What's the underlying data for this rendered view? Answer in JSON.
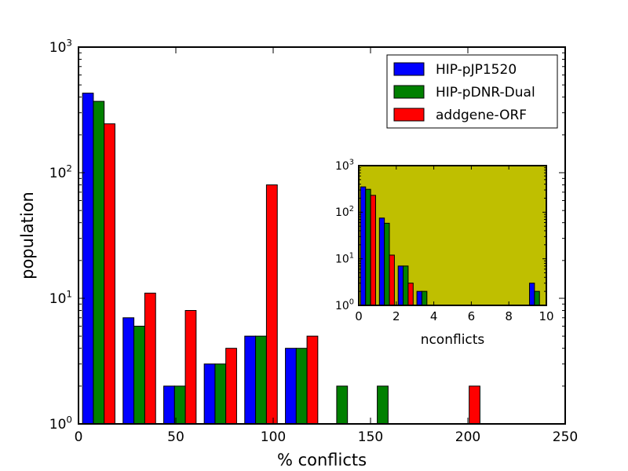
{
  "chart_data": [
    {
      "type": "bar",
      "xlabel": "% conflicts",
      "ylabel": "population",
      "xlim": [
        0,
        250
      ],
      "ylim": [
        1,
        1000
      ],
      "yscale": "log",
      "grid": false,
      "legend_position": "top-right",
      "x_ticks": [
        {
          "value": 0,
          "label": "0"
        },
        {
          "value": 50,
          "label": "50"
        },
        {
          "value": 100,
          "label": "100"
        },
        {
          "value": 150,
          "label": "150"
        },
        {
          "value": 200,
          "label": "200"
        },
        {
          "value": 250,
          "label": "250"
        }
      ],
      "y_ticks": [
        {
          "value": 1,
          "base": "10",
          "exp": "0"
        },
        {
          "value": 10,
          "base": "10",
          "exp": "1"
        },
        {
          "value": 100,
          "base": "10",
          "exp": "2"
        },
        {
          "value": 1000,
          "base": "10",
          "exp": "3"
        }
      ],
      "bin_edges": [
        0,
        20.8,
        41.7,
        62.5,
        83.3,
        104.2,
        125,
        145.8,
        166.7,
        187.5,
        208.3
      ],
      "series": [
        {
          "name": "HIP-pJP1520",
          "color": "#0000ff",
          "values": [
            430,
            7,
            2,
            3,
            5,
            4,
            0,
            0,
            0,
            0
          ]
        },
        {
          "name": "HIP-pDNR-Dual",
          "color": "#008000",
          "values": [
            370,
            6,
            2,
            3,
            5,
            4,
            2,
            2,
            0,
            0
          ]
        },
        {
          "name": "addgene-ORF",
          "color": "#ff0000",
          "values": [
            245,
            11,
            8,
            4,
            80,
            5,
            0,
            0,
            0,
            2
          ]
        }
      ]
    },
    {
      "type": "bar",
      "xlabel": "nconflicts",
      "ylabel": "",
      "xlim": [
        0,
        10
      ],
      "ylim": [
        1,
        1000
      ],
      "yscale": "log",
      "background_color": "#bfbf00",
      "grid": false,
      "x_ticks": [
        {
          "value": 0,
          "label": "0"
        },
        {
          "value": 2,
          "label": "2"
        },
        {
          "value": 4,
          "label": "4"
        },
        {
          "value": 6,
          "label": "6"
        },
        {
          "value": 8,
          "label": "8"
        },
        {
          "value": 10,
          "label": "10"
        }
      ],
      "y_ticks": [
        {
          "value": 1,
          "base": "10",
          "exp": "0"
        },
        {
          "value": 10,
          "base": "10",
          "exp": "1"
        },
        {
          "value": 100,
          "base": "10",
          "exp": "2"
        },
        {
          "value": 1000,
          "base": "10",
          "exp": "3"
        }
      ],
      "bin_edges": [
        0,
        1,
        2,
        3,
        4,
        5,
        6,
        7,
        8,
        9,
        10
      ],
      "series": [
        {
          "name": "HIP-pJP1520",
          "color": "#0000ff",
          "values": [
            350,
            75,
            7,
            2,
            0,
            0,
            0,
            0,
            0,
            3
          ]
        },
        {
          "name": "HIP-pDNR-Dual",
          "color": "#008000",
          "values": [
            310,
            58,
            7,
            2,
            0,
            0,
            0,
            0,
            0,
            2
          ]
        },
        {
          "name": "addgene-ORF",
          "color": "#ff0000",
          "values": [
            230,
            12,
            3,
            0,
            0,
            0,
            0,
            0,
            0,
            0
          ]
        }
      ]
    }
  ]
}
